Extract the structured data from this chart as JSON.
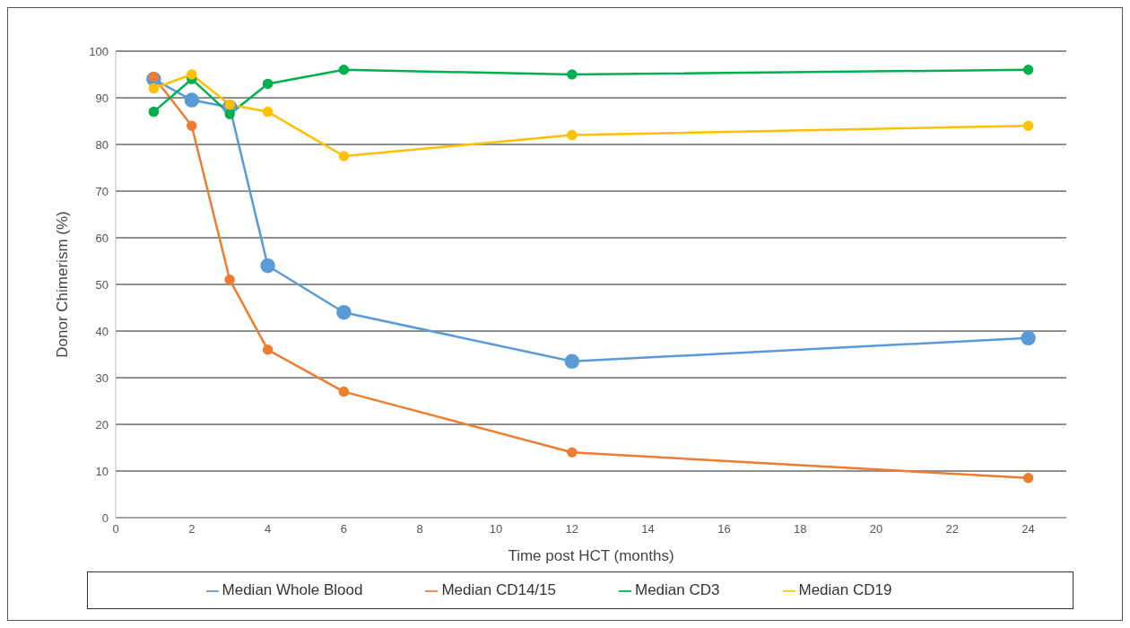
{
  "chart_data": {
    "type": "line",
    "xlabel": "Time post HCT (months)",
    "ylabel": "Donor Chimerism (%)",
    "x": [
      1,
      2,
      3,
      4,
      6,
      12,
      24
    ],
    "series": [
      {
        "name": "Median Whole Blood",
        "color": "#5b9bd5",
        "values": [
          94,
          89.5,
          88,
          54,
          44,
          33.5,
          38.5
        ]
      },
      {
        "name": "Median CD14/15",
        "color": "#ed7d31",
        "values": [
          94.5,
          84,
          51,
          36,
          27,
          14,
          8.5
        ]
      },
      {
        "name": "Median CD3",
        "color": "#00b050",
        "values": [
          87,
          94,
          86.5,
          93,
          96,
          95,
          96
        ]
      },
      {
        "name": "Median CD19",
        "color": "#ffc000",
        "values": [
          92,
          95,
          88.5,
          87,
          77.5,
          82,
          84
        ]
      }
    ],
    "xlim": [
      0,
      25
    ],
    "xticks": [
      0,
      2,
      4,
      6,
      8,
      10,
      12,
      14,
      16,
      18,
      20,
      22,
      24
    ],
    "ylim": [
      0,
      100
    ],
    "yticks": [
      0,
      10,
      20,
      30,
      40,
      50,
      60,
      70,
      80,
      90,
      100
    ],
    "grid": "y",
    "legend": "bottom",
    "marker": "circle",
    "line_style": "solid"
  }
}
